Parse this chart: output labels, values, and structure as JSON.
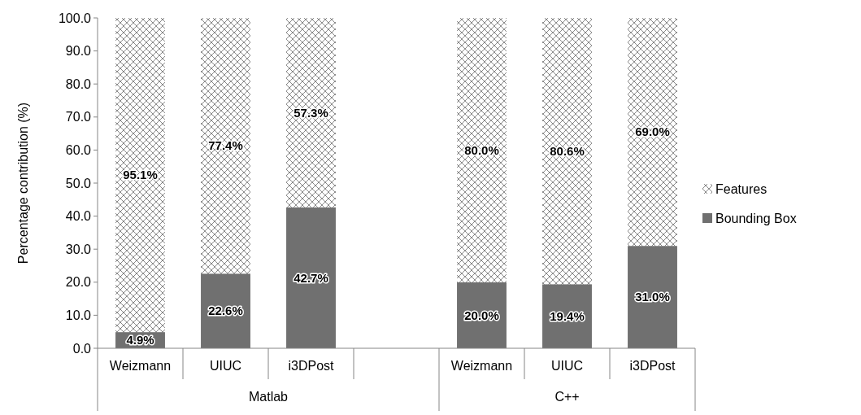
{
  "chart_data": {
    "type": "bar",
    "stacked": true,
    "ylabel": "Percentage contribution (%)",
    "categories": [
      "Weizmann",
      "UIUC",
      "i3DPost",
      null,
      "Weizmann",
      "UIUC",
      "i3DPost"
    ],
    "annotations": [
      "Matlab",
      "C++"
    ],
    "series": [
      {
        "name": "Bounding Box",
        "color": "#707070",
        "values": [
          4.9,
          22.6,
          42.7,
          null,
          20.0,
          19.4,
          31.0
        ],
        "value_labels": [
          "4.9%",
          "22.6%",
          "42.7%",
          null,
          "20.0%",
          "19.4%",
          "31.0%"
        ]
      },
      {
        "name": "Features",
        "color": "#8a8a8a",
        "values": [
          95.1,
          77.4,
          57.3,
          null,
          80.0,
          80.6,
          69.0
        ],
        "value_labels": [
          "95.1%",
          "77.4%",
          "57.3%",
          null,
          "80.0%",
          "80.6%",
          "69.0%"
        ]
      }
    ],
    "ylim": [
      0,
      100
    ],
    "yticks": [
      {
        "value": 0,
        "label": "0.0"
      },
      {
        "value": 10,
        "label": "10.0"
      },
      {
        "value": 20,
        "label": "20.0"
      },
      {
        "value": 30,
        "label": "30.0"
      },
      {
        "value": 40,
        "label": "40.0"
      },
      {
        "value": 50,
        "label": "50.0"
      },
      {
        "value": 60,
        "label": "60.0"
      },
      {
        "value": 70,
        "label": "70.0"
      },
      {
        "value": 80,
        "label": "80.0"
      },
      {
        "value": 90,
        "label": "90.0"
      },
      {
        "value": 100,
        "label": "100.0"
      }
    ],
    "grid": false,
    "legend": "right"
  }
}
